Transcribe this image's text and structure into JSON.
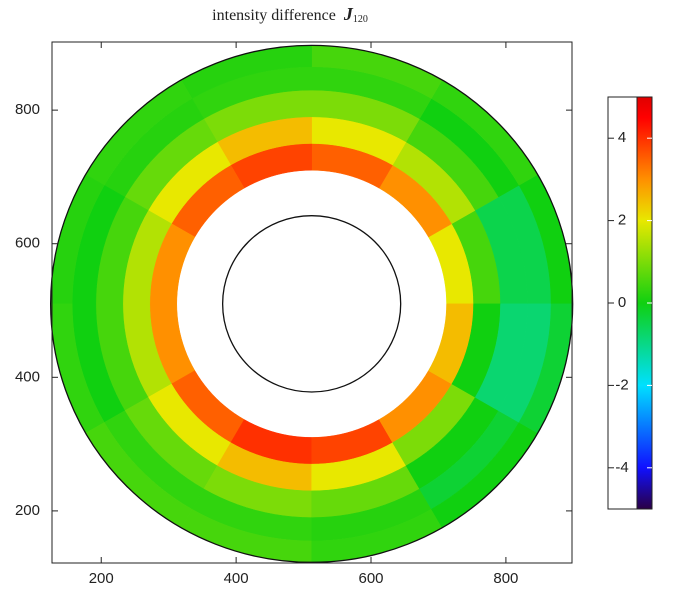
{
  "chart_data": {
    "type": "heatmap",
    "title": "intensity difference",
    "title_symbol": "J",
    "title_subscript": "120",
    "xlim": [
      127,
      898
    ],
    "ylim": [
      122,
      902
    ],
    "xticks": [
      200,
      400,
      600,
      800
    ],
    "yticks": [
      200,
      400,
      600,
      800
    ],
    "center": [
      512,
      510
    ],
    "r_edges": [
      200,
      240,
      280,
      320,
      355,
      387
    ],
    "theta_edges": [
      0,
      30,
      60,
      90,
      120,
      150,
      180,
      210,
      240,
      270,
      300,
      330,
      360
    ],
    "values": [
      [
        2,
        3,
        3.5,
        3.8,
        3.5,
        3,
        3,
        3.5,
        4,
        3.8,
        3,
        2.5
      ],
      [
        0.5,
        1.5,
        2,
        2.5,
        2,
        1.5,
        1.5,
        2,
        2.5,
        2,
        1,
        0
      ],
      [
        -0.5,
        0.5,
        1,
        1,
        0.8,
        0.5,
        0.5,
        0.8,
        1,
        0.8,
        0,
        -0.8
      ],
      [
        -0.5,
        0,
        0.3,
        0.3,
        0.2,
        0,
        0,
        0.3,
        0.3,
        0.2,
        -0.3,
        -0.8
      ],
      [
        0,
        0.3,
        0.5,
        0.2,
        0.3,
        0.2,
        0.3,
        0.5,
        0.5,
        0.3,
        0,
        -0.3
      ]
    ],
    "circle_radii": [
      132,
      387
    ],
    "colorbar": {
      "lim": [
        -5,
        5
      ],
      "ticks": [
        -4,
        -2,
        0,
        2,
        4
      ]
    },
    "colormap": [
      {
        "value": -5,
        "color": "#2a0045"
      },
      {
        "value": -4,
        "color": "#1010ff"
      },
      {
        "value": -2,
        "color": "#00e0ff"
      },
      {
        "value": 0,
        "color": "#10d010"
      },
      {
        "value": 2,
        "color": "#e8e800"
      },
      {
        "value": 3,
        "color": "#ff9000"
      },
      {
        "value": 4.5,
        "color": "#ff0000"
      },
      {
        "value": 5,
        "color": "#e00000"
      }
    ]
  }
}
